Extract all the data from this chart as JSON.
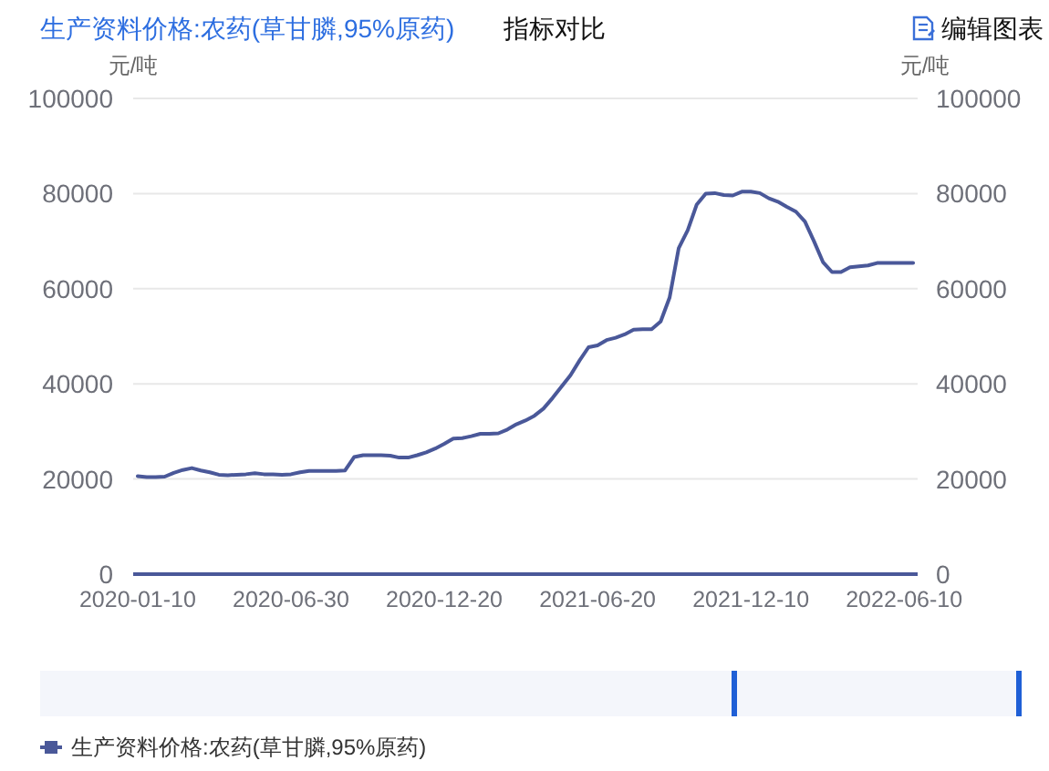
{
  "chart_data": {
    "type": "line",
    "title": "生产资料价格:农药(草甘膦,95%原药)",
    "ylabel": "元/吨",
    "y2label": "元/吨",
    "categories": [
      "2020-01-10",
      null,
      null,
      null,
      null,
      null,
      null,
      null,
      null,
      null,
      null,
      null,
      null,
      null,
      null,
      null,
      null,
      "2020-06-30",
      null,
      null,
      null,
      null,
      null,
      null,
      null,
      null,
      null,
      null,
      null,
      null,
      null,
      null,
      null,
      null,
      "2020-12-20",
      null,
      null,
      null,
      null,
      null,
      null,
      null,
      null,
      null,
      null,
      null,
      null,
      null,
      null,
      null,
      null,
      "2021-06-20",
      null,
      null,
      null,
      null,
      null,
      null,
      null,
      null,
      null,
      null,
      null,
      null,
      null,
      null,
      null,
      null,
      "2021-12-10",
      null,
      null,
      null,
      null,
      null,
      null,
      null,
      null,
      null,
      null,
      null,
      null,
      null,
      null,
      null,
      null,
      "2022-06-10",
      null
    ],
    "series": [
      {
        "name": "生产资料价格:农药(草甘膦,95%原药)",
        "color": "#4a5899",
        "values": [
          20600,
          20400,
          20400,
          20500,
          21300,
          21900,
          22300,
          21800,
          21400,
          20900,
          20800,
          20900,
          21000,
          21200,
          21000,
          21000,
          20900,
          21000,
          21400,
          21700,
          21700,
          21700,
          21700,
          21800,
          24600,
          25000,
          25000,
          25000,
          24900,
          24500,
          24500,
          25000,
          25600,
          26400,
          27400,
          28500,
          28600,
          29000,
          29500,
          29500,
          29600,
          30400,
          31500,
          32300,
          33300,
          34800,
          37000,
          39400,
          41800,
          44900,
          47700,
          48100,
          49200,
          49700,
          50400,
          51400,
          51500,
          51500,
          53100,
          58200,
          68500,
          72300,
          77700,
          80000,
          80100,
          79700,
          79600,
          80400,
          80400,
          80100,
          79000,
          78300,
          77200,
          76200,
          74100,
          70000,
          65600,
          63500,
          63500,
          64500,
          64700,
          64900,
          65400,
          65400,
          65400,
          65400,
          65400
        ]
      }
    ],
    "ylim": [
      0,
      100000
    ],
    "yticks": [
      0,
      20000,
      40000,
      60000,
      80000,
      100000
    ],
    "y2lim": [
      0,
      100000
    ],
    "y2ticks": [
      0,
      20000,
      40000,
      60000,
      80000,
      100000
    ],
    "grid": "y",
    "legend": "bottom left",
    "annotations": [
      "指标对比",
      "编辑图表"
    ]
  }
}
